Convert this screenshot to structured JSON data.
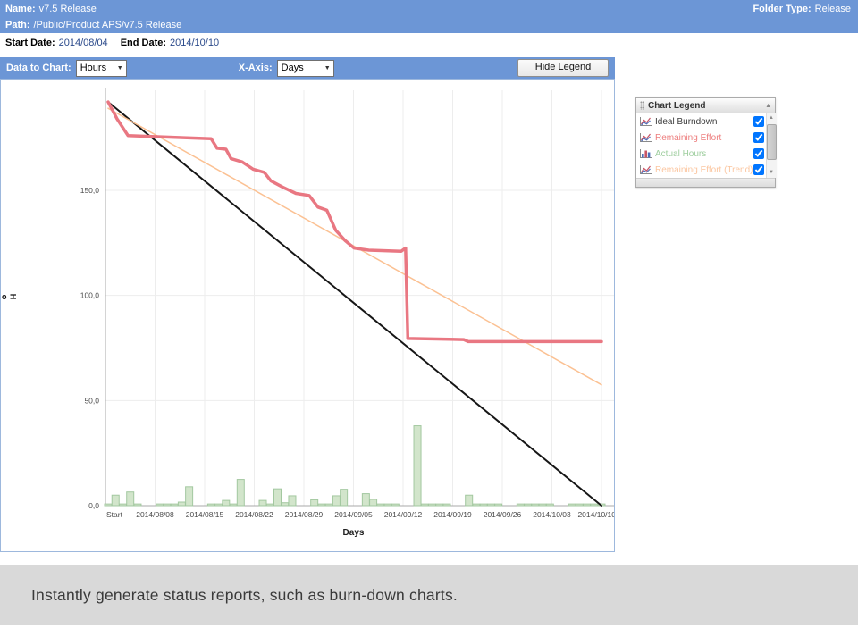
{
  "header": {
    "name_label": "Name:",
    "name_value": "v7.5 Release",
    "folder_type_label": "Folder Type:",
    "folder_type_value": "Release",
    "path_label": "Path:",
    "path_value": "/Public/Product APS/v7.5 Release",
    "start_date_label": "Start Date:",
    "start_date_value": "2014/08/04",
    "end_date_label": "End Date:",
    "end_date_value": "2014/10/10",
    "accent_color": "#6c96d6"
  },
  "toolbar": {
    "data_to_chart_label": "Data to Chart:",
    "data_to_chart_value": "Hours",
    "x_axis_label": "X-Axis:",
    "x_axis_value": "Days",
    "hide_legend_button": "Hide Legend"
  },
  "legend": {
    "title": "Chart Legend",
    "items": [
      {
        "label": "Ideal Burndown",
        "color": "#3c3c3c",
        "icon": "line-chart-icon",
        "checked": true
      },
      {
        "label": "Remaining Effort",
        "color": "#ed7d7d",
        "icon": "line-chart-icon",
        "checked": true
      },
      {
        "label": "Actual Hours",
        "color": "#9fce9f",
        "icon": "bar-chart-icon",
        "checked": true
      },
      {
        "label": "Remaining Effort (Trend)",
        "color": "#fbc6a0",
        "icon": "line-chart-icon",
        "checked": true
      }
    ]
  },
  "chart_data": {
    "type": "line",
    "xlabel": "Days",
    "y_axis_glyphs": [
      "o",
      "H"
    ],
    "x_ticks": [
      "Start",
      "2014/08/08",
      "2014/08/15",
      "2014/08/22",
      "2014/08/29",
      "2014/09/05",
      "2014/09/12",
      "2014/09/19",
      "2014/09/26",
      "2014/10/03",
      "2014/10/10"
    ],
    "y_ticks": [
      "0,0",
      "50,0",
      "100,0",
      "150,0"
    ],
    "y_tick_values": [
      0,
      50,
      100,
      150
    ],
    "ylim": [
      0,
      199
    ],
    "x_days_total": 67,
    "series": [
      {
        "name": "Ideal Burndown",
        "type": "line",
        "color": "#161616",
        "width": 2,
        "points": [
          [
            0,
            192
          ],
          [
            67,
            0
          ]
        ]
      },
      {
        "name": "Remaining Effort (Trend)",
        "type": "line",
        "color": "#fbc193",
        "width": 1.5,
        "points": [
          [
            0,
            189
          ],
          [
            67,
            57.5
          ]
        ]
      },
      {
        "name": "Remaining Effort",
        "type": "line",
        "color": "#e97782",
        "width": 3.5,
        "points": [
          [
            0,
            192
          ],
          [
            1.2,
            184
          ],
          [
            2.7,
            176
          ],
          [
            10.3,
            175
          ],
          [
            14,
            174.5
          ],
          [
            14.8,
            170
          ],
          [
            16,
            169.5
          ],
          [
            16.7,
            165
          ],
          [
            18.2,
            163.5
          ],
          [
            19.7,
            160
          ],
          [
            21.2,
            158.5
          ],
          [
            22.1,
            154.5
          ],
          [
            23.7,
            151.5
          ],
          [
            25.5,
            148.5
          ],
          [
            27.3,
            147.5
          ],
          [
            28.5,
            142
          ],
          [
            29.7,
            140.5
          ],
          [
            30.9,
            131
          ],
          [
            32.2,
            126
          ],
          [
            33.4,
            122.5
          ],
          [
            35.4,
            121.5
          ],
          [
            39.8,
            121
          ],
          [
            40.4,
            122.5
          ],
          [
            40.7,
            79.5
          ],
          [
            48.3,
            79
          ],
          [
            48.9,
            78
          ],
          [
            67,
            78
          ]
        ]
      },
      {
        "name": "Actual Hours",
        "type": "bar",
        "color": "#d2e5cb",
        "stroke": "#a3c8a0",
        "bars": [
          [
            0,
            0.8
          ],
          [
            1,
            5
          ],
          [
            2,
            0.8
          ],
          [
            3,
            6.5
          ],
          [
            4,
            0.8
          ],
          [
            7,
            0.8
          ],
          [
            8,
            0.8
          ],
          [
            9,
            0.8
          ],
          [
            10,
            1.7
          ],
          [
            11,
            9
          ],
          [
            14,
            0.8
          ],
          [
            15,
            0.8
          ],
          [
            16,
            2.5
          ],
          [
            17,
            0.8
          ],
          [
            18,
            12.5
          ],
          [
            21,
            2.5
          ],
          [
            22,
            0.8
          ],
          [
            23,
            8
          ],
          [
            24,
            1.4
          ],
          [
            25,
            4.7
          ],
          [
            28,
            2.8
          ],
          [
            29,
            0.8
          ],
          [
            30,
            0.8
          ],
          [
            31,
            4.7
          ],
          [
            32,
            7.8
          ],
          [
            35,
            5.7
          ],
          [
            36,
            3
          ],
          [
            37,
            0.8
          ],
          [
            38,
            0.8
          ],
          [
            39,
            0.8
          ],
          [
            42,
            38
          ],
          [
            43,
            0.8
          ],
          [
            44,
            0.8
          ],
          [
            45,
            0.8
          ],
          [
            46,
            0.8
          ],
          [
            49,
            5
          ],
          [
            50,
            0.8
          ],
          [
            51,
            0.8
          ],
          [
            52,
            0.8
          ],
          [
            53,
            0.8
          ],
          [
            56,
            0.8
          ],
          [
            57,
            0.8
          ],
          [
            58,
            0.8
          ],
          [
            59,
            0.8
          ],
          [
            60,
            0.8
          ],
          [
            63,
            0.8
          ],
          [
            64,
            0.8
          ],
          [
            65,
            0.8
          ],
          [
            66,
            0.8
          ],
          [
            67,
            0.8
          ]
        ]
      }
    ],
    "grid": true,
    "legend_position": "right-floating"
  },
  "caption": "Instantly generate status reports, such as burn-down charts."
}
